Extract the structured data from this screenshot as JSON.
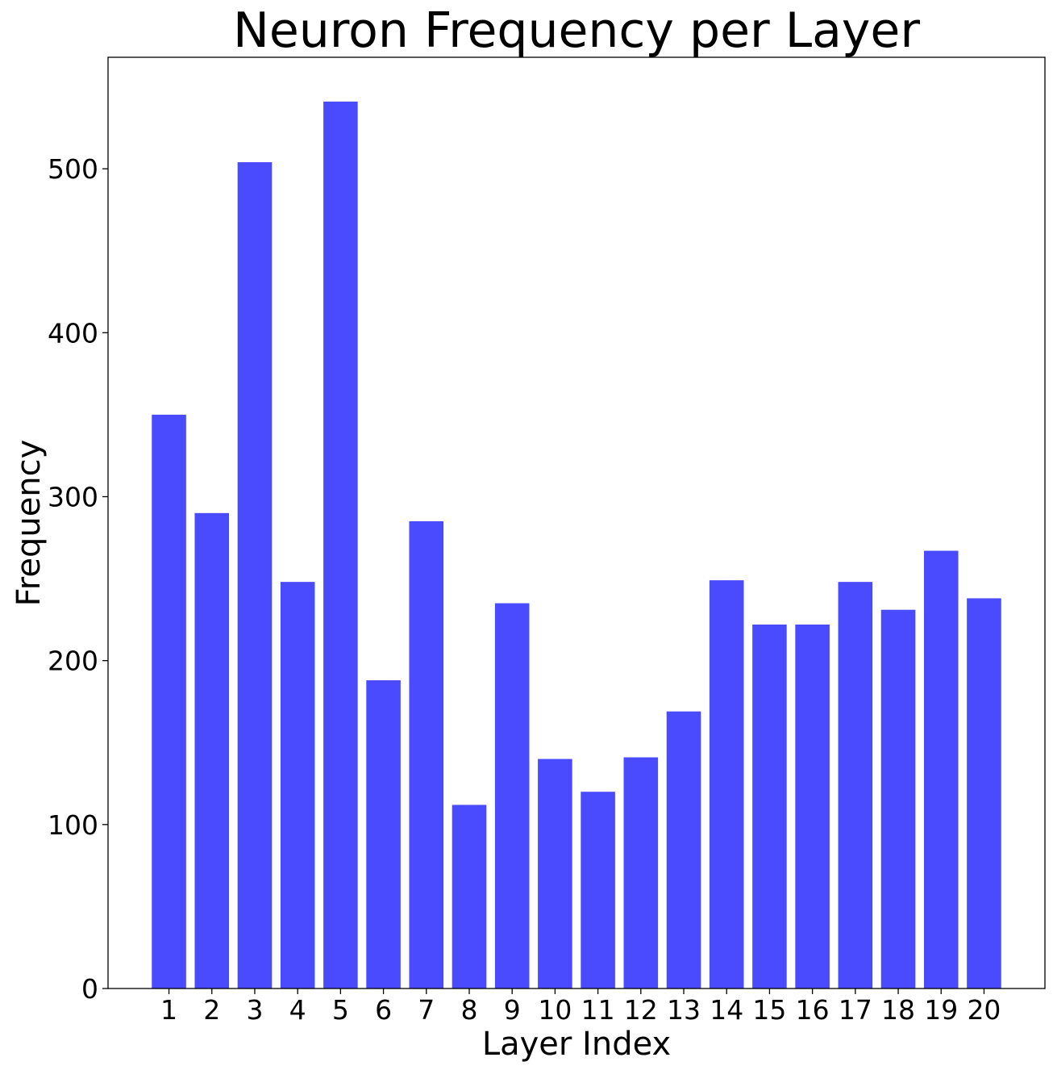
{
  "chart_data": {
    "type": "bar",
    "title": "Neuron Frequency per Layer",
    "xlabel": "Layer Index",
    "ylabel": "Frequency",
    "categories": [
      "1",
      "2",
      "3",
      "4",
      "5",
      "6",
      "7",
      "8",
      "9",
      "10",
      "11",
      "12",
      "13",
      "14",
      "15",
      "16",
      "17",
      "18",
      "19",
      "20"
    ],
    "values": [
      350,
      290,
      504,
      248,
      541,
      188,
      285,
      112,
      235,
      140,
      120,
      141,
      169,
      249,
      222,
      222,
      248,
      231,
      267,
      238
    ],
    "ylim": [
      0,
      568
    ],
    "yticks": [
      0,
      100,
      200,
      300,
      400,
      500
    ],
    "grid": false,
    "bar_color": "#4a4aff"
  }
}
